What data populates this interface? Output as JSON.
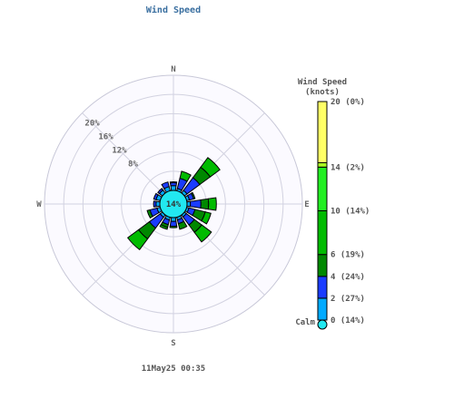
{
  "chart_data": {
    "type": "wind-rose",
    "title": "Wind Speed",
    "timestamp": "11May25 00:35",
    "compass": {
      "N": "N",
      "E": "E",
      "S": "S",
      "W": "W"
    },
    "radial_ticks": [
      {
        "value": 8,
        "label": "8%"
      },
      {
        "value": 12,
        "label": "12%"
      },
      {
        "value": 16,
        "label": "16%"
      },
      {
        "value": 20,
        "label": "20%"
      }
    ],
    "rmax": 24,
    "calm_label": "14%",
    "legend": {
      "title_line1": "Wind Speed",
      "title_line2": "(knots)",
      "calm_text": "Calm",
      "bins": [
        {
          "from": 0,
          "to": 2,
          "label": "0 (14%)",
          "color": "#00aaff"
        },
        {
          "from": 2,
          "to": 4,
          "label": "2 (27%)",
          "color": "#1a3cff"
        },
        {
          "from": 4,
          "to": 6,
          "label": "4 (24%)",
          "color": "#008800"
        },
        {
          "from": 6,
          "to": 10,
          "label": "6 (19%)",
          "color": "#00bb00"
        },
        {
          "from": 10,
          "to": 14,
          "label": "10 (14%)",
          "color": "#22ee22"
        },
        {
          "from": 14,
          "to": 20,
          "label": "14 (2%)",
          "color": "#aaff22"
        },
        {
          "from": 20,
          "to": 20,
          "label": "20 (0%)",
          "color": "#ffff66"
        }
      ]
    },
    "sectors": [
      {
        "dir": 0,
        "segs": [
          1.0,
          0.6,
          0.2
        ]
      },
      {
        "dir": 22.5,
        "segs": [
          0.5,
          2.2,
          0,
          1.5
        ]
      },
      {
        "dir": 45,
        "segs": [
          0.7,
          3.3,
          2.7,
          2.5
        ]
      },
      {
        "dir": 67.5,
        "segs": [
          0.6,
          0.9,
          0.3
        ]
      },
      {
        "dir": 90,
        "segs": [
          0.7,
          2.2,
          1.6,
          1.6
        ]
      },
      {
        "dir": 112.5,
        "segs": [
          0.5,
          1.3,
          2.2,
          1.2
        ]
      },
      {
        "dir": 135,
        "segs": [
          0.5,
          2.1,
          1.9,
          2.5
        ]
      },
      {
        "dir": 157.5,
        "segs": [
          0.6,
          0.8,
          1.2
        ]
      },
      {
        "dir": 180,
        "segs": [
          0.8,
          1.0,
          0.3
        ]
      },
      {
        "dir": 202.5,
        "segs": [
          0.6,
          1.0,
          0.6,
          0.4
        ]
      },
      {
        "dir": 225,
        "segs": [
          0.6,
          2.8,
          2.8,
          2.8
        ]
      },
      {
        "dir": 247.5,
        "segs": [
          0.7,
          1.5,
          0.6
        ]
      },
      {
        "dir": 270,
        "segs": [
          0.8,
          0.5
        ]
      },
      {
        "dir": 292.5,
        "segs": [
          0.9,
          0.5
        ]
      },
      {
        "dir": 315,
        "segs": [
          0.8,
          0.4
        ]
      },
      {
        "dir": 337.5,
        "segs": [
          0.9,
          1.0
        ]
      }
    ]
  }
}
